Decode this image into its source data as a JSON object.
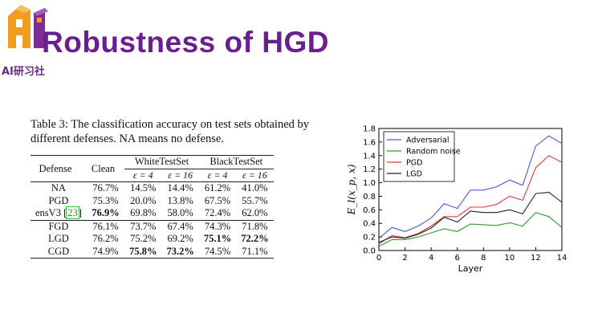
{
  "brand": {
    "logo_text": "AI研习社"
  },
  "slide": {
    "title": "Robustness of HGD"
  },
  "table": {
    "caption": "Table 3: The classification accuracy on test sets obtained by different defenses. NA means no defense.",
    "headers": {
      "defense": "Defense",
      "clean": "Clean",
      "white": "WhiteTestSet",
      "black": "BlackTestSet",
      "eps4": "ε = 4",
      "eps16": "ε = 16"
    },
    "rows": [
      {
        "name": "NA",
        "cite": "",
        "clean": "76.7%",
        "w4": "14.5%",
        "w16": "14.4%",
        "b4": "61.2%",
        "b16": "41.0%"
      },
      {
        "name": "PGD",
        "cite": "",
        "clean": "75.3%",
        "w4": "20.0%",
        "w16": "13.8%",
        "b4": "67.5%",
        "b16": "55.7%"
      },
      {
        "name": "ensV3",
        "cite": "23",
        "clean": "76.9%",
        "w4": "69.8%",
        "w16": "58.0%",
        "b4": "72.4%",
        "b16": "62.0%"
      },
      {
        "name": "FGD",
        "cite": "",
        "clean": "76.1%",
        "w4": "73.7%",
        "w16": "67.4%",
        "b4": "74.3%",
        "b16": "71.8%"
      },
      {
        "name": "LGD",
        "cite": "",
        "clean": "76.2%",
        "w4": "75.2%",
        "w16": "69.2%",
        "b4": "75.1%",
        "b16": "72.2%"
      },
      {
        "name": "CGD",
        "cite": "",
        "clean": "74.9%",
        "w4": "75.8%",
        "w16": "73.2%",
        "b4": "74.5%",
        "b16": "71.1%"
      }
    ]
  },
  "chart_data": {
    "type": "line",
    "xlabel": "Layer",
    "ylabel": "E_l(x_p, x)",
    "xlim": [
      0,
      14
    ],
    "ylim": [
      0,
      1.8
    ],
    "xticks": [
      "0",
      "2",
      "4",
      "6",
      "8",
      "10",
      "12",
      "14"
    ],
    "yticks": [
      "0.0",
      "0.2",
      "0.4",
      "0.6",
      "0.8",
      "1.0",
      "1.2",
      "1.4",
      "1.6",
      "1.8"
    ],
    "legend_position": "top-left",
    "x": [
      0,
      1,
      2,
      3,
      4,
      5,
      6,
      7,
      8,
      9,
      10,
      11,
      12,
      13,
      14
    ],
    "series": [
      {
        "name": "Adversarial",
        "color": "#4a5ad6",
        "values": [
          0.18,
          0.34,
          0.28,
          0.36,
          0.48,
          0.69,
          0.62,
          0.89,
          0.89,
          0.94,
          1.04,
          0.96,
          1.54,
          1.69,
          1.58
        ]
      },
      {
        "name": "Random noise",
        "color": "#2e9b2e",
        "values": [
          0.06,
          0.16,
          0.16,
          0.2,
          0.26,
          0.32,
          0.28,
          0.39,
          0.38,
          0.37,
          0.41,
          0.36,
          0.56,
          0.5,
          0.34
        ]
      },
      {
        "name": "PGD",
        "color": "#e03a3a",
        "values": [
          0.1,
          0.22,
          0.19,
          0.25,
          0.36,
          0.5,
          0.5,
          0.64,
          0.64,
          0.68,
          0.8,
          0.74,
          1.22,
          1.4,
          1.3
        ]
      },
      {
        "name": "LGD",
        "color": "#222222",
        "values": [
          0.12,
          0.2,
          0.18,
          0.24,
          0.33,
          0.49,
          0.42,
          0.58,
          0.56,
          0.56,
          0.6,
          0.54,
          0.84,
          0.86,
          0.71
        ]
      }
    ]
  }
}
